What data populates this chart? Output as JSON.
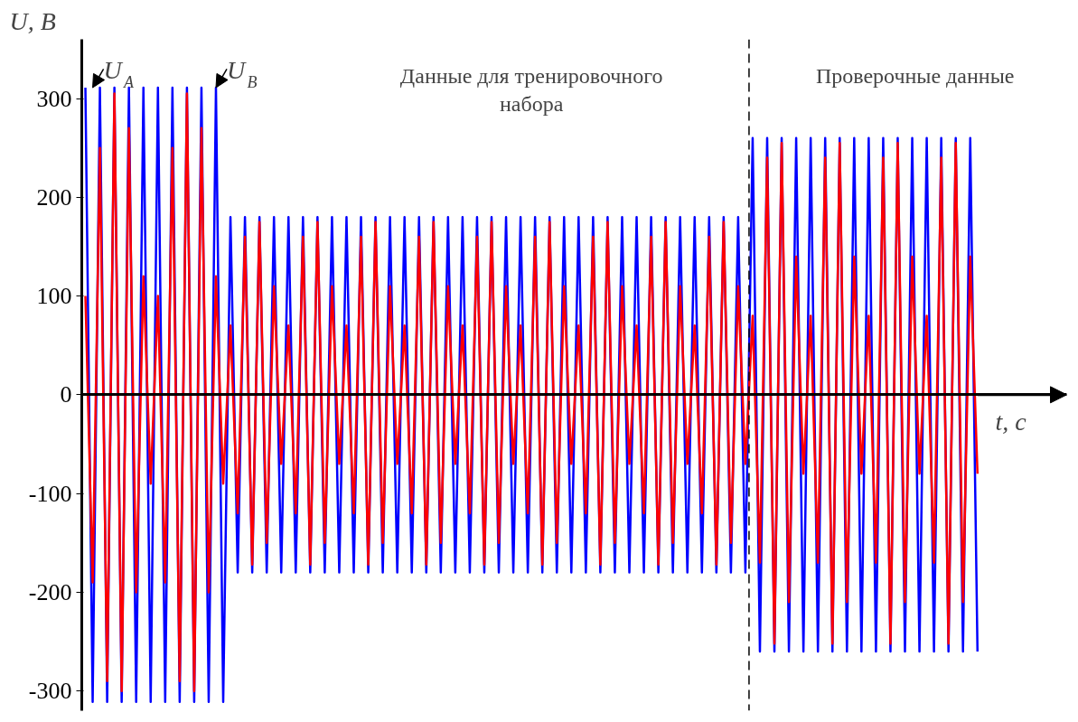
{
  "chart_data": {
    "type": "line",
    "xlabel": "t, c",
    "ylabel": "U, B",
    "categories": [
      null,
      null,
      null,
      null,
      null,
      null,
      null,
      null,
      null,
      null,
      null,
      null,
      null,
      null,
      null,
      null,
      null,
      null,
      null,
      null,
      null,
      null,
      null,
      null,
      null,
      null,
      null,
      null,
      null,
      null,
      null,
      null,
      null,
      null,
      null,
      null,
      null,
      null,
      null,
      null,
      null,
      null,
      null,
      null,
      null,
      null,
      null,
      null,
      null,
      null,
      null,
      null,
      null,
      null,
      null,
      null,
      null,
      null,
      null,
      null,
      null,
      null,
      null,
      null,
      null,
      null,
      null,
      null,
      null,
      null,
      null,
      null,
      null,
      null,
      null,
      null,
      null,
      null,
      null,
      null,
      null,
      null,
      null,
      null,
      null,
      null,
      null,
      null,
      null,
      null,
      null,
      null,
      null,
      null,
      null,
      null,
      null,
      null,
      null,
      null,
      null,
      null,
      null,
      null,
      null,
      null,
      null,
      null,
      null,
      null,
      null,
      null,
      null,
      null,
      null,
      null,
      null,
      null,
      null,
      null,
      null,
      null,
      null,
      null
    ],
    "series": [
      {
        "name": "U$_{A}$",
        "color": "#0000ff",
        "values": [
          311,
          -311,
          311,
          -311,
          311,
          -311,
          311,
          -311,
          311,
          -311,
          311,
          -311,
          311,
          -311,
          311,
          -311,
          311,
          -311,
          311,
          -311,
          180,
          -180,
          180,
          -180,
          180,
          -180,
          180,
          -180,
          180,
          -180,
          180,
          -180,
          180,
          -180,
          180,
          -180,
          180,
          -180,
          180,
          -180,
          180,
          -180,
          180,
          -180,
          180,
          -180,
          180,
          -180,
          180,
          -180,
          180,
          -180,
          180,
          -180,
          180,
          -180,
          180,
          -180,
          180,
          -180,
          180,
          -180,
          180,
          -180,
          180,
          -180,
          180,
          -180,
          180,
          -180,
          180,
          -180,
          180,
          -180,
          180,
          -180,
          180,
          -180,
          180,
          -180,
          180,
          -180,
          180,
          -180,
          180,
          -180,
          180,
          -180,
          180,
          -180,
          180,
          -180,
          260,
          -260,
          260,
          -260,
          260,
          -260,
          260,
          -260,
          260,
          -260,
          260,
          -260,
          260,
          -260,
          260,
          -260,
          260,
          -260,
          260,
          -260,
          260,
          -260,
          260,
          -260,
          260,
          -260,
          260,
          -260,
          260,
          -260,
          260,
          -260
        ]
      },
      {
        "name": "U$_{B}$",
        "color": "#ff0000",
        "values": [
          100,
          -190,
          250,
          -290,
          305,
          -300,
          270,
          -200,
          120,
          -90,
          100,
          -190,
          250,
          -290,
          305,
          -300,
          270,
          -200,
          120,
          -90,
          70,
          -120,
          160,
          -172,
          175,
          -150,
          110,
          -70,
          70,
          -120,
          160,
          -172,
          175,
          -150,
          110,
          -70,
          70,
          -120,
          160,
          -172,
          175,
          -150,
          110,
          -70,
          70,
          -120,
          160,
          -172,
          175,
          -150,
          110,
          -70,
          70,
          -120,
          160,
          -172,
          175,
          -150,
          110,
          -70,
          70,
          -120,
          160,
          -172,
          175,
          -150,
          110,
          -70,
          70,
          -120,
          160,
          -172,
          175,
          -150,
          110,
          -70,
          70,
          -120,
          160,
          -172,
          175,
          -150,
          110,
          -70,
          70,
          -120,
          160,
          -172,
          175,
          -150,
          110,
          -70,
          80,
          -170,
          240,
          -252,
          255,
          -210,
          140,
          -80,
          80,
          -170,
          240,
          -252,
          255,
          -210,
          140,
          -80,
          80,
          -170,
          240,
          -252,
          255,
          -210,
          140,
          -80,
          80,
          -170,
          240,
          -252,
          255,
          -210,
          140,
          -80
        ]
      }
    ],
    "ylim": [
      -320,
      360
    ],
    "yticks": [
      -300,
      -200,
      -100,
      0,
      100,
      200,
      300
    ],
    "annotations": [
      "Данные для тренировочного\nнабора",
      "Проверочные данные"
    ],
    "tick_labels": "y",
    "grid": false,
    "legend": false,
    "line_style": "solid",
    "marker": "none"
  }
}
